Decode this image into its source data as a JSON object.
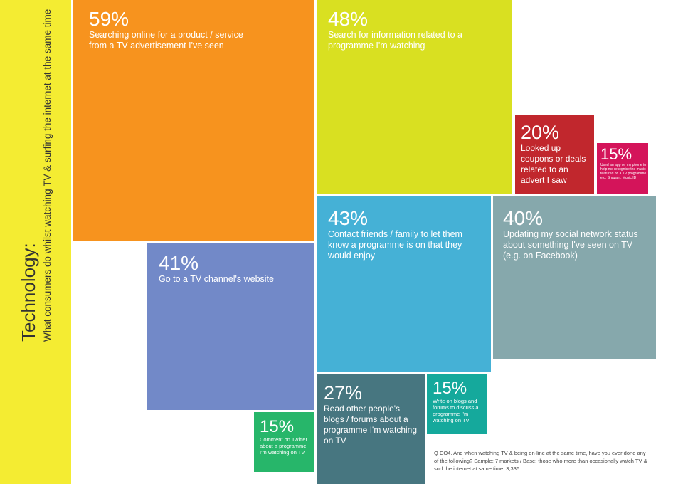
{
  "sidebar": {
    "title": "Technology:",
    "subtitle": "What consumers do whilst watching TV & surfing the internet at the same time"
  },
  "footnote": "Q CO4. And when watching TV & being on-line at the same time, have you ever done any of the following? Sample: 7 markets / Base: those who more than occasionally watch TV & surf the internet at same time: 3,336",
  "chart_data": {
    "type": "treemap",
    "items": [
      {
        "value": 59,
        "label": "59%",
        "desc": "Searching online for a product / service from a TV advertisement I've seen",
        "color": "#f7931e"
      },
      {
        "value": 48,
        "label": "48%",
        "desc": "Search for information related to a programme I'm watching",
        "color": "#d9e021"
      },
      {
        "value": 20,
        "label": "20%",
        "desc": "Looked up coupons or deals related to an advert I saw",
        "color": "#c1272d"
      },
      {
        "value": 15,
        "label": "15%",
        "desc": "Used an app on my phone to help me recognise the music featured on a TV programme e.g. Shazam, Music ID",
        "color": "#d4145a"
      },
      {
        "value": 43,
        "label": "43%",
        "desc": "Contact friends / family to let them know a programme is on that they would enjoy",
        "color": "#45b1d6"
      },
      {
        "value": 40,
        "label": "40%",
        "desc": "Updating my social network status about something I've seen on TV (e.g. on Facebook)",
        "color": "#86a8ac"
      },
      {
        "value": 41,
        "label": "41%",
        "desc": "Go to a TV channel's website",
        "color": "#7289c8"
      },
      {
        "value": 27,
        "label": "27%",
        "desc": "Read other people's blogs / forums about a programme I'm watching on TV",
        "color": "#477680"
      },
      {
        "value": 15,
        "label": "15%",
        "desc": "Write on blogs and forums to discuss a programme I'm watching on TV",
        "color": "#15a99c"
      },
      {
        "value": 15,
        "label": "15%",
        "desc": "Comment on Twitter about a programme I'm watching on TV",
        "color": "#27b66a"
      }
    ]
  }
}
